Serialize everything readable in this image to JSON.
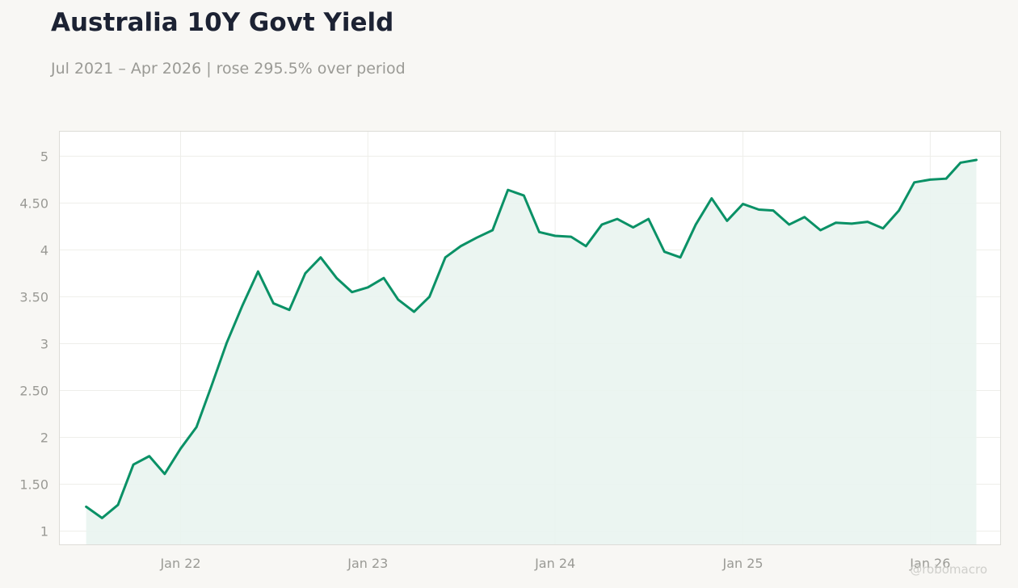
{
  "title": "Australia 10Y Govt Yield",
  "subtitle": "Jul 2021 – Apr 2026 | rose 295.5% over period",
  "watermark": "@robomacro",
  "colors": {
    "line": "#0a9166",
    "fill": "#e9f4ef",
    "plot_bg": "#ffffff",
    "page_bg": "#f8f7f4",
    "grid": "#eeeeea",
    "border": "#dddcd7"
  },
  "chart_data": {
    "type": "area",
    "title": "Australia 10Y Govt Yield",
    "xlabel": "",
    "ylabel": "",
    "ylim": [
      0.85,
      5.27
    ],
    "xlim": [
      "2021-05-09",
      "2026-05-19"
    ],
    "grid": true,
    "legend": "none",
    "x_ticks": [
      {
        "date": "2022-01-01",
        "label": "Jan 22"
      },
      {
        "date": "2023-01-01",
        "label": "Jan 23"
      },
      {
        "date": "2024-01-01",
        "label": "Jan 24"
      },
      {
        "date": "2025-01-01",
        "label": "Jan 25"
      },
      {
        "date": "2026-01-01",
        "label": "Jan 26"
      }
    ],
    "y_ticks": [
      {
        "value": 1,
        "label": "1"
      },
      {
        "value": 1.5,
        "label": "1.50"
      },
      {
        "value": 2,
        "label": "2"
      },
      {
        "value": 2.5,
        "label": "2.50"
      },
      {
        "value": 3,
        "label": "3"
      },
      {
        "value": 3.5,
        "label": "3.50"
      },
      {
        "value": 4,
        "label": "4"
      },
      {
        "value": 4.5,
        "label": "4.50"
      },
      {
        "value": 5,
        "label": "5"
      }
    ],
    "series": [
      {
        "x": [
          "2021-07-01",
          "2021-08-01",
          "2021-09-01",
          "2021-10-01",
          "2021-11-01",
          "2021-12-01",
          "2022-01-01",
          "2022-02-01",
          "2022-03-01",
          "2022-04-01",
          "2022-05-01",
          "2022-06-01",
          "2022-07-01",
          "2022-08-01",
          "2022-09-01",
          "2022-10-01",
          "2022-11-01",
          "2022-12-01",
          "2023-01-01",
          "2023-02-01",
          "2023-03-01",
          "2023-04-01",
          "2023-05-01",
          "2023-06-01",
          "2023-07-01",
          "2023-08-01",
          "2023-09-01",
          "2023-10-01",
          "2023-11-01",
          "2023-12-01",
          "2024-01-01",
          "2024-02-01",
          "2024-03-01",
          "2024-04-01",
          "2024-05-01",
          "2024-06-01",
          "2024-07-01",
          "2024-08-01",
          "2024-09-01",
          "2024-10-01",
          "2024-11-01",
          "2024-12-01",
          "2025-01-01",
          "2025-02-01",
          "2025-03-01",
          "2025-04-01",
          "2025-05-01",
          "2025-06-01",
          "2025-07-01",
          "2025-08-01",
          "2025-09-01",
          "2025-10-01",
          "2025-11-01",
          "2025-12-01",
          "2026-01-01",
          "2026-02-01",
          "2026-03-01",
          "2026-04-01"
        ],
        "values": [
          1.26,
          1.14,
          1.28,
          1.71,
          1.8,
          1.61,
          1.88,
          2.11,
          2.53,
          3.01,
          3.4,
          3.77,
          3.43,
          3.36,
          3.75,
          3.92,
          3.7,
          3.55,
          3.6,
          3.7,
          3.47,
          3.34,
          3.5,
          3.92,
          4.04,
          4.13,
          4.21,
          4.64,
          4.58,
          4.19,
          4.15,
          4.14,
          4.04,
          4.27,
          4.33,
          4.24,
          4.33,
          3.98,
          3.92,
          4.27,
          4.55,
          4.31,
          4.49,
          4.43,
          4.42,
          4.27,
          4.35,
          4.21,
          4.29,
          4.28,
          4.3,
          4.23,
          4.42,
          4.72,
          4.75,
          4.76,
          4.93,
          4.96
        ]
      }
    ]
  }
}
